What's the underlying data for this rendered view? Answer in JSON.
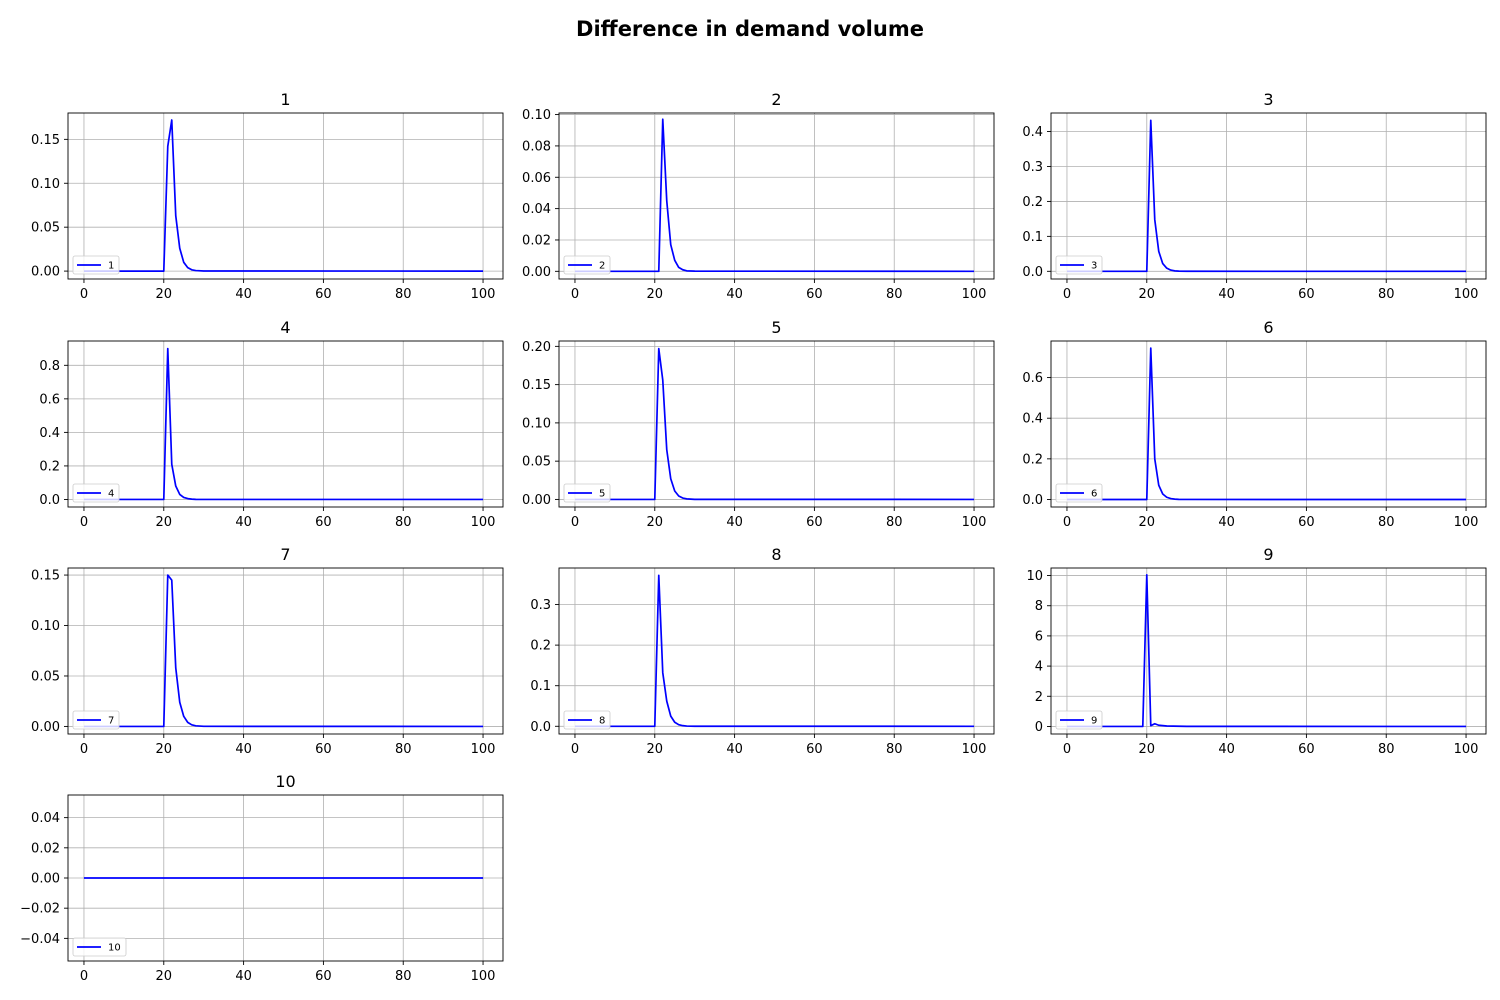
{
  "figure": {
    "title": "Difference in demand volume"
  },
  "colors": {
    "series": "#0000ff"
  },
  "chart_data": [
    {
      "type": "line",
      "title": "1",
      "xlim": [
        -4,
        105
      ],
      "ylim": [
        -0.009,
        0.18
      ],
      "xticks": [
        0,
        20,
        40,
        60,
        80,
        100
      ],
      "yticks": [
        0.0,
        0.05,
        0.1,
        0.15
      ],
      "ytick_labels": [
        "0.00",
        "0.05",
        "0.10",
        "0.15"
      ],
      "grid": true,
      "legend": "lower-left",
      "series": [
        {
          "name": "1",
          "x": [
            0,
            20,
            21,
            22,
            23,
            24,
            25,
            26,
            27,
            28,
            30,
            100
          ],
          "y": [
            0,
            0,
            0.142,
            0.172,
            0.063,
            0.026,
            0.01,
            0.004,
            0.0015,
            0.0006,
            0.0001,
            0
          ]
        }
      ]
    },
    {
      "type": "line",
      "title": "2",
      "xlim": [
        -4,
        105
      ],
      "ylim": [
        -0.0049,
        0.101
      ],
      "xticks": [
        0,
        20,
        40,
        60,
        80,
        100
      ],
      "yticks": [
        0.0,
        0.02,
        0.04,
        0.06,
        0.08,
        0.1
      ],
      "ytick_labels": [
        "0.00",
        "0.02",
        "0.04",
        "0.06",
        "0.08",
        "0.10"
      ],
      "grid": true,
      "legend": "lower-left",
      "series": [
        {
          "name": "2",
          "x": [
            0,
            21,
            22,
            23,
            24,
            25,
            26,
            27,
            28,
            30,
            100
          ],
          "y": [
            0,
            0,
            0.097,
            0.045,
            0.017,
            0.007,
            0.0025,
            0.001,
            0.0003,
            0.0001,
            0
          ]
        }
      ]
    },
    {
      "type": "line",
      "title": "3",
      "xlim": [
        -4,
        105
      ],
      "ylim": [
        -0.022,
        0.453
      ],
      "xticks": [
        0,
        20,
        40,
        60,
        80,
        100
      ],
      "yticks": [
        0.0,
        0.1,
        0.2,
        0.3,
        0.4
      ],
      "ytick_labels": [
        "0.0",
        "0.1",
        "0.2",
        "0.3",
        "0.4"
      ],
      "grid": true,
      "legend": "lower-left",
      "series": [
        {
          "name": "3",
          "x": [
            0,
            20,
            21,
            22,
            23,
            24,
            25,
            26,
            27,
            28,
            30,
            100
          ],
          "y": [
            0,
            0,
            0.432,
            0.148,
            0.057,
            0.022,
            0.009,
            0.0035,
            0.0013,
            0.0005,
            0.0001,
            0
          ]
        }
      ]
    },
    {
      "type": "line",
      "title": "4",
      "xlim": [
        -4,
        105
      ],
      "ylim": [
        -0.045,
        0.945
      ],
      "xticks": [
        0,
        20,
        40,
        60,
        80,
        100
      ],
      "yticks": [
        0.0,
        0.2,
        0.4,
        0.6,
        0.8
      ],
      "ytick_labels": [
        "0.0",
        "0.2",
        "0.4",
        "0.6",
        "0.8"
      ],
      "grid": true,
      "legend": "lower-left",
      "series": [
        {
          "name": "4",
          "x": [
            0,
            20,
            21,
            22,
            23,
            24,
            25,
            26,
            27,
            28,
            30,
            100
          ],
          "y": [
            0,
            0,
            0.9,
            0.21,
            0.08,
            0.03,
            0.012,
            0.005,
            0.002,
            0.0007,
            0.0001,
            0
          ]
        }
      ]
    },
    {
      "type": "line",
      "title": "5",
      "xlim": [
        -4,
        105
      ],
      "ylim": [
        -0.0099,
        0.207
      ],
      "xticks": [
        0,
        20,
        40,
        60,
        80,
        100
      ],
      "yticks": [
        0.0,
        0.05,
        0.1,
        0.15,
        0.2
      ],
      "ytick_labels": [
        "0.00",
        "0.05",
        "0.10",
        "0.15",
        "0.20"
      ],
      "grid": true,
      "legend": "lower-left",
      "series": [
        {
          "name": "5",
          "x": [
            0,
            20,
            21,
            22,
            23,
            24,
            25,
            26,
            27,
            28,
            30,
            100
          ],
          "y": [
            0,
            0,
            0.197,
            0.156,
            0.065,
            0.027,
            0.011,
            0.0045,
            0.0018,
            0.0007,
            0.0001,
            0
          ]
        }
      ]
    },
    {
      "type": "line",
      "title": "6",
      "xlim": [
        -4,
        105
      ],
      "ylim": [
        -0.037,
        0.78
      ],
      "xticks": [
        0,
        20,
        40,
        60,
        80,
        100
      ],
      "yticks": [
        0.0,
        0.2,
        0.4,
        0.6
      ],
      "ytick_labels": [
        "0.0",
        "0.2",
        "0.4",
        "0.6"
      ],
      "grid": true,
      "legend": "lower-left",
      "series": [
        {
          "name": "6",
          "x": [
            0,
            20,
            21,
            22,
            23,
            24,
            25,
            26,
            27,
            28,
            30,
            100
          ],
          "y": [
            0,
            0,
            0.745,
            0.2,
            0.07,
            0.027,
            0.011,
            0.0045,
            0.0018,
            0.0007,
            0.0001,
            0
          ]
        }
      ]
    },
    {
      "type": "line",
      "title": "7",
      "xlim": [
        -4,
        105
      ],
      "ylim": [
        -0.0075,
        0.157
      ],
      "xticks": [
        0,
        20,
        40,
        60,
        80,
        100
      ],
      "yticks": [
        0.0,
        0.05,
        0.1,
        0.15
      ],
      "ytick_labels": [
        "0.00",
        "0.05",
        "0.10",
        "0.15"
      ],
      "grid": true,
      "legend": "lower-left",
      "series": [
        {
          "name": "7",
          "x": [
            0,
            20,
            21,
            22,
            23,
            24,
            25,
            26,
            27,
            28,
            30,
            100
          ],
          "y": [
            0,
            0,
            0.15,
            0.145,
            0.058,
            0.024,
            0.01,
            0.004,
            0.0016,
            0.0006,
            0.0001,
            0
          ]
        }
      ]
    },
    {
      "type": "line",
      "title": "8",
      "xlim": [
        -4,
        105
      ],
      "ylim": [
        -0.019,
        0.39
      ],
      "xticks": [
        0,
        20,
        40,
        60,
        80,
        100
      ],
      "yticks": [
        0.0,
        0.1,
        0.2,
        0.3
      ],
      "ytick_labels": [
        "0.0",
        "0.1",
        "0.2",
        "0.3"
      ],
      "grid": true,
      "legend": "lower-left",
      "series": [
        {
          "name": "8",
          "x": [
            0,
            20,
            21,
            22,
            23,
            24,
            25,
            26,
            27,
            28,
            30,
            100
          ],
          "y": [
            0,
            0,
            0.372,
            0.132,
            0.062,
            0.025,
            0.01,
            0.004,
            0.0016,
            0.0006,
            0.0001,
            0
          ]
        }
      ]
    },
    {
      "type": "line",
      "title": "9",
      "xlim": [
        -4,
        105
      ],
      "ylim": [
        -0.5,
        10.5
      ],
      "xticks": [
        0,
        20,
        40,
        60,
        80,
        100
      ],
      "yticks": [
        0,
        2,
        4,
        6,
        8,
        10
      ],
      "ytick_labels": [
        "0",
        "2",
        "4",
        "6",
        "8",
        "10"
      ],
      "grid": true,
      "legend": "lower-left",
      "series": [
        {
          "name": "9",
          "x": [
            0,
            19,
            20,
            21,
            22,
            23,
            25,
            30,
            100
          ],
          "y": [
            0,
            0,
            10.05,
            0.05,
            0.18,
            0.08,
            0.03,
            0.005,
            0
          ]
        }
      ]
    },
    {
      "type": "line",
      "title": "10",
      "xlim": [
        -4,
        105
      ],
      "ylim": [
        -0.055,
        0.055
      ],
      "xticks": [
        0,
        20,
        40,
        60,
        80,
        100
      ],
      "yticks": [
        -0.04,
        -0.02,
        0.0,
        0.02,
        0.04
      ],
      "ytick_labels": [
        "−0.04",
        "−0.02",
        "0.00",
        "0.02",
        "0.04"
      ],
      "grid": true,
      "legend": "lower-left",
      "series": [
        {
          "name": "10",
          "x": [
            0,
            100
          ],
          "y": [
            0,
            0
          ]
        }
      ]
    }
  ]
}
